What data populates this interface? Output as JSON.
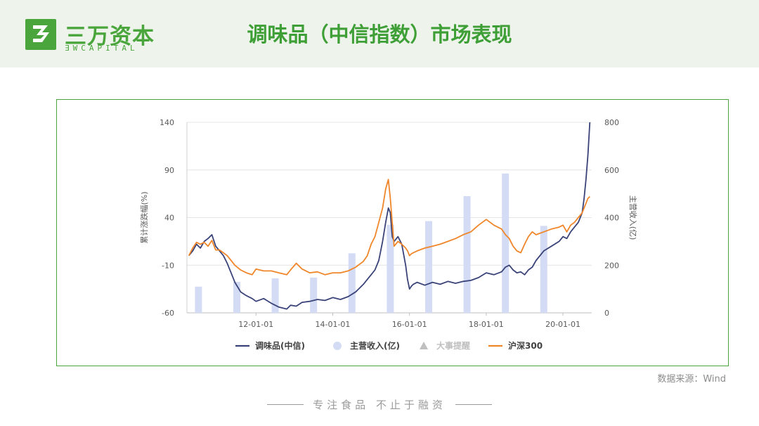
{
  "logo": {
    "name_cn": "三万资本",
    "name_en": "ƎWCAPITAL"
  },
  "title": "调味品（中信指数）市场表现",
  "source": "数据来源：Wind",
  "footer": {
    "slogan": "专注食品  不止于融资"
  },
  "colors": {
    "index_line": "#3a4378",
    "csi300_line": "#f0862a",
    "revenue_bar": "#d3dcf4",
    "event_marker": "#bfbfbf",
    "brand_green": "#4aa63c"
  },
  "chart_data": {
    "type": "line",
    "x_axis": {
      "tick_labels": [
        "12-01-01",
        "14-01-01",
        "16-01-01",
        "18-01-01",
        "20-01-01"
      ],
      "ticks": [
        2012.0,
        2014.0,
        2016.0,
        2018.0,
        2020.0
      ],
      "range": [
        2010.2,
        2020.75
      ]
    },
    "y_left": {
      "label": "累计涨跌幅(%)",
      "range": [
        -60,
        140
      ],
      "ticks": [
        -60,
        -10,
        40,
        90,
        140
      ]
    },
    "y_right": {
      "label": "主营收入(亿)",
      "range": [
        0,
        800
      ],
      "ticks": [
        0,
        200,
        400,
        600,
        800
      ]
    },
    "legend": [
      "调味品(中信)",
      "主营收入(亿)",
      "大事提醒",
      "沪深300"
    ],
    "legend_position": "bottom",
    "grid": "horizontal",
    "series": [
      {
        "name": "调味品(中信)",
        "axis": "left",
        "color": "#3a4378",
        "x": [
          2010.25,
          2010.35,
          2010.45,
          2010.55,
          2010.65,
          2010.75,
          2010.85,
          2010.95,
          2011.05,
          2011.15,
          2011.25,
          2011.35,
          2011.45,
          2011.6,
          2011.75,
          2011.9,
          2012.0,
          2012.2,
          2012.4,
          2012.6,
          2012.8,
          2012.9,
          2013.05,
          2013.2,
          2013.4,
          2013.6,
          2013.8,
          2014.0,
          2014.2,
          2014.4,
          2014.6,
          2014.8,
          2014.9,
          2015.0,
          2015.1,
          2015.2,
          2015.3,
          2015.38,
          2015.45,
          2015.5,
          2015.55,
          2015.6,
          2015.7,
          2015.8,
          2015.9,
          2015.95,
          2016.0,
          2016.05,
          2016.1,
          2016.2,
          2016.4,
          2016.6,
          2016.8,
          2017.0,
          2017.2,
          2017.4,
          2017.6,
          2017.8,
          2018.0,
          2018.2,
          2018.4,
          2018.5,
          2018.6,
          2018.7,
          2018.8,
          2018.9,
          2019.0,
          2019.1,
          2019.2,
          2019.3,
          2019.5,
          2019.7,
          2019.9,
          2020.0,
          2020.1,
          2020.2,
          2020.3,
          2020.4,
          2020.5,
          2020.55,
          2020.6,
          2020.65,
          2020.7
        ],
        "y": [
          0,
          5,
          12,
          8,
          15,
          18,
          22,
          10,
          5,
          0,
          -8,
          -18,
          -28,
          -38,
          -42,
          -45,
          -48,
          -45,
          -50,
          -54,
          -56,
          -52,
          -53,
          -49,
          -48,
          -46,
          -47,
          -44,
          -46,
          -43,
          -38,
          -30,
          -25,
          -20,
          -15,
          -5,
          15,
          35,
          50,
          45,
          20,
          15,
          20,
          12,
          -10,
          -25,
          -35,
          -32,
          -30,
          -28,
          -31,
          -28,
          -30,
          -27,
          -29,
          -27,
          -26,
          -23,
          -18,
          -20,
          -17,
          -12,
          -10,
          -15,
          -18,
          -17,
          -20,
          -15,
          -12,
          -5,
          5,
          10,
          15,
          20,
          18,
          25,
          30,
          35,
          45,
          60,
          80,
          105,
          140
        ]
      },
      {
        "name": "沪深300",
        "axis": "left",
        "color": "#f0862a",
        "x": [
          2010.25,
          2010.35,
          2010.45,
          2010.55,
          2010.65,
          2010.75,
          2010.85,
          2010.95,
          2011.05,
          2011.15,
          2011.25,
          2011.35,
          2011.45,
          2011.6,
          2011.75,
          2011.9,
          2012.0,
          2012.2,
          2012.4,
          2012.6,
          2012.8,
          2012.9,
          2013.05,
          2013.2,
          2013.4,
          2013.6,
          2013.8,
          2014.0,
          2014.2,
          2014.4,
          2014.6,
          2014.8,
          2014.9,
          2015.0,
          2015.1,
          2015.2,
          2015.3,
          2015.38,
          2015.45,
          2015.5,
          2015.55,
          2015.6,
          2015.7,
          2015.8,
          2015.9,
          2015.95,
          2016.0,
          2016.05,
          2016.1,
          2016.2,
          2016.4,
          2016.6,
          2016.8,
          2017.0,
          2017.2,
          2017.4,
          2017.6,
          2017.8,
          2018.0,
          2018.2,
          2018.4,
          2018.5,
          2018.6,
          2018.7,
          2018.8,
          2018.9,
          2019.0,
          2019.1,
          2019.2,
          2019.3,
          2019.5,
          2019.7,
          2019.9,
          2020.0,
          2020.1,
          2020.2,
          2020.3,
          2020.4,
          2020.5,
          2020.55,
          2020.6,
          2020.65,
          2020.7
        ],
        "y": [
          0,
          8,
          14,
          12,
          14,
          10,
          16,
          6,
          6,
          3,
          0,
          -5,
          -10,
          -15,
          -18,
          -20,
          -14,
          -16,
          -16,
          -18,
          -20,
          -15,
          -8,
          -14,
          -18,
          -17,
          -20,
          -18,
          -18,
          -16,
          -12,
          -6,
          0,
          12,
          20,
          35,
          50,
          70,
          80,
          60,
          35,
          10,
          15,
          12,
          8,
          5,
          0,
          2,
          3,
          5,
          8,
          10,
          12,
          15,
          18,
          22,
          25,
          32,
          38,
          32,
          28,
          22,
          18,
          10,
          5,
          3,
          12,
          20,
          25,
          22,
          25,
          28,
          30,
          32,
          25,
          32,
          35,
          40,
          45,
          50,
          55,
          60,
          62
        ]
      },
      {
        "name": "主营收入(亿)",
        "axis": "right",
        "type": "bar",
        "color": "#d3dcf4",
        "x": [
          2010.5,
          2011.5,
          2012.5,
          2013.5,
          2014.5,
          2015.5,
          2016.5,
          2017.5,
          2018.5,
          2019.5
        ],
        "values": [
          110,
          130,
          145,
          148,
          250,
          370,
          385,
          490,
          585,
          365
        ]
      }
    ]
  }
}
